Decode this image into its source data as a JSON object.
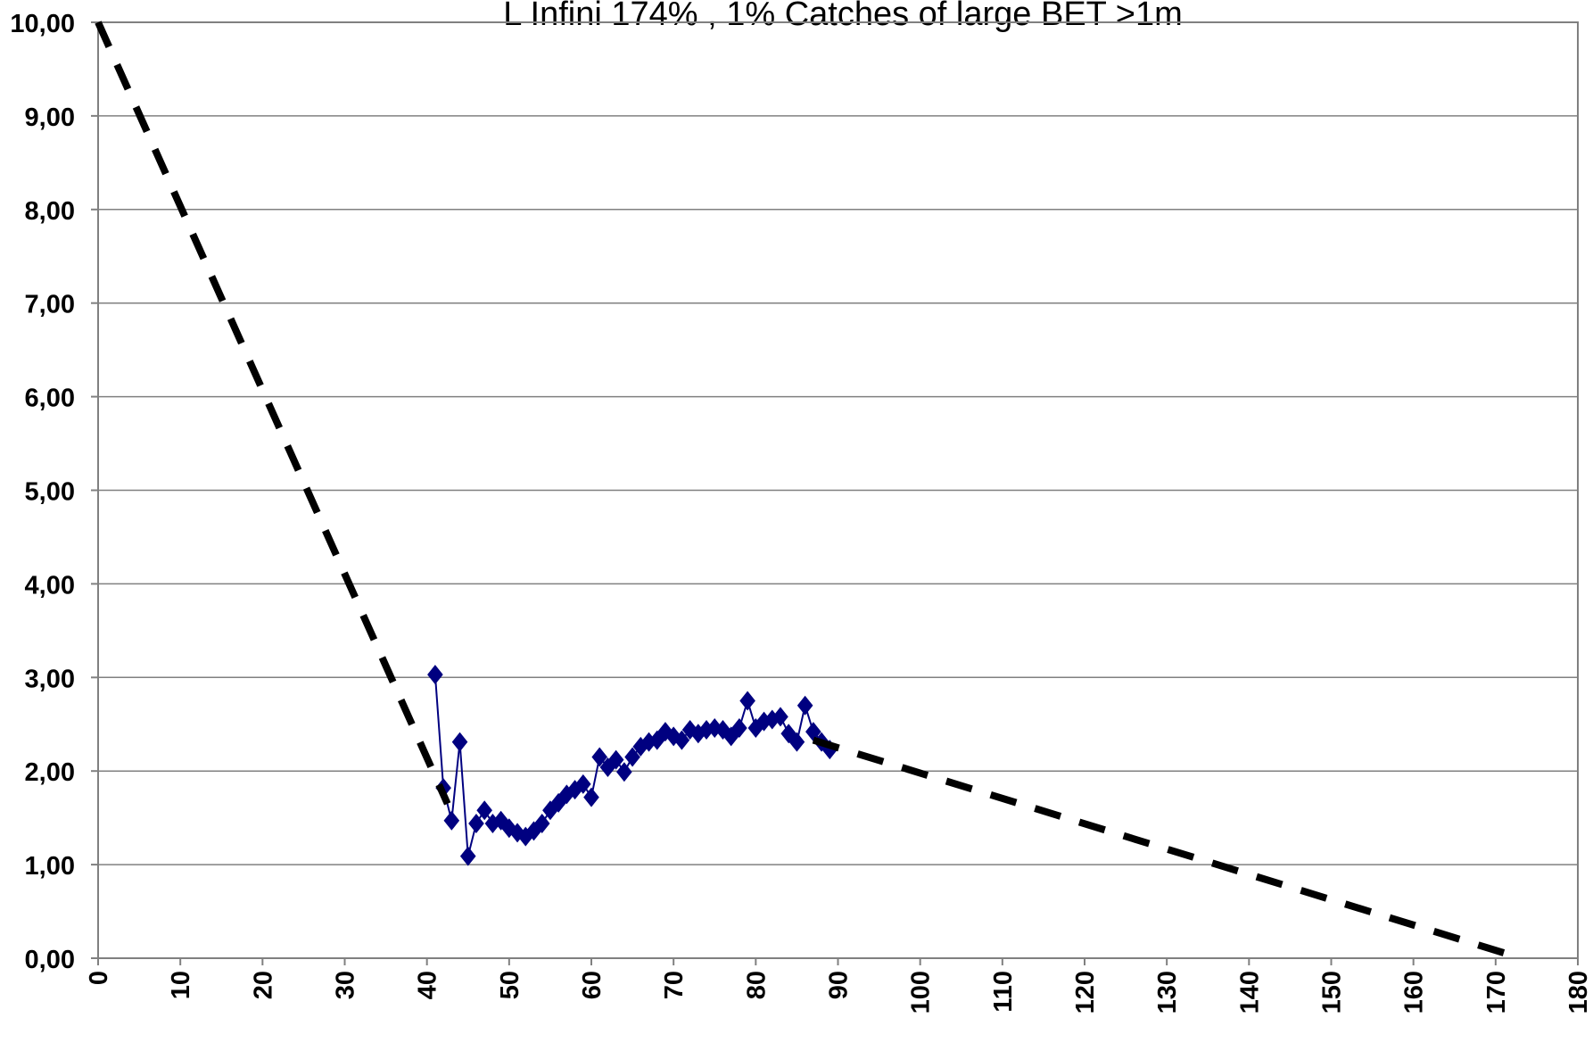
{
  "chart_data": {
    "type": "line",
    "title": "L Infini  174% , 1% Catches of large BET >1m",
    "xlim": [
      0,
      180
    ],
    "xticks": [
      0,
      10,
      20,
      30,
      40,
      50,
      60,
      70,
      80,
      90,
      100,
      110,
      120,
      130,
      140,
      150,
      160,
      170,
      180
    ],
    "ylim": [
      0,
      10
    ],
    "yticks": [
      {
        "value": 0,
        "label": "0,00"
      },
      {
        "value": 1,
        "label": "1,00"
      },
      {
        "value": 2,
        "label": "2,00"
      },
      {
        "value": 3,
        "label": "3,00"
      },
      {
        "value": 4,
        "label": "4,00"
      },
      {
        "value": 5,
        "label": "5,00"
      },
      {
        "value": 6,
        "label": "6,00"
      },
      {
        "value": 7,
        "label": "7,00"
      },
      {
        "value": 8,
        "label": "8,00"
      },
      {
        "value": 9,
        "label": "9,00"
      },
      {
        "value": 10,
        "label": "10,00"
      }
    ],
    "grid": true,
    "series": [
      {
        "color": "#000080",
        "marker": "diamond",
        "dashed": false,
        "x": [
          41,
          42,
          43,
          44,
          45,
          46,
          47,
          48,
          49,
          50,
          51,
          52,
          53,
          54,
          55,
          56,
          57,
          58,
          59,
          60,
          61,
          62,
          63,
          64,
          65,
          66,
          67,
          68,
          69,
          70,
          71,
          72,
          73,
          74,
          75,
          76,
          77,
          78,
          79,
          80,
          81,
          82,
          83,
          84,
          85,
          86,
          87,
          88,
          89
        ],
        "values": [
          3.03,
          1.82,
          1.47,
          2.31,
          1.09,
          1.44,
          1.58,
          1.44,
          1.47,
          1.39,
          1.34,
          1.3,
          1.36,
          1.44,
          1.58,
          1.66,
          1.75,
          1.8,
          1.86,
          1.72,
          2.15,
          2.04,
          2.12,
          1.99,
          2.15,
          2.26,
          2.31,
          2.33,
          2.42,
          2.37,
          2.33,
          2.44,
          2.4,
          2.44,
          2.46,
          2.44,
          2.37,
          2.46,
          2.75,
          2.46,
          2.53,
          2.55,
          2.58,
          2.4,
          2.31,
          2.7,
          2.42,
          2.31,
          2.23
        ]
      },
      {
        "color": "#000000",
        "marker": "none",
        "dashed": true,
        "x": [
          0,
          42.5
        ],
        "values": [
          10,
          1.65
        ]
      },
      {
        "color": "#000000",
        "marker": "none",
        "dashed": true,
        "x": [
          87,
          172
        ],
        "values": [
          2.33,
          0.03
        ]
      }
    ]
  }
}
